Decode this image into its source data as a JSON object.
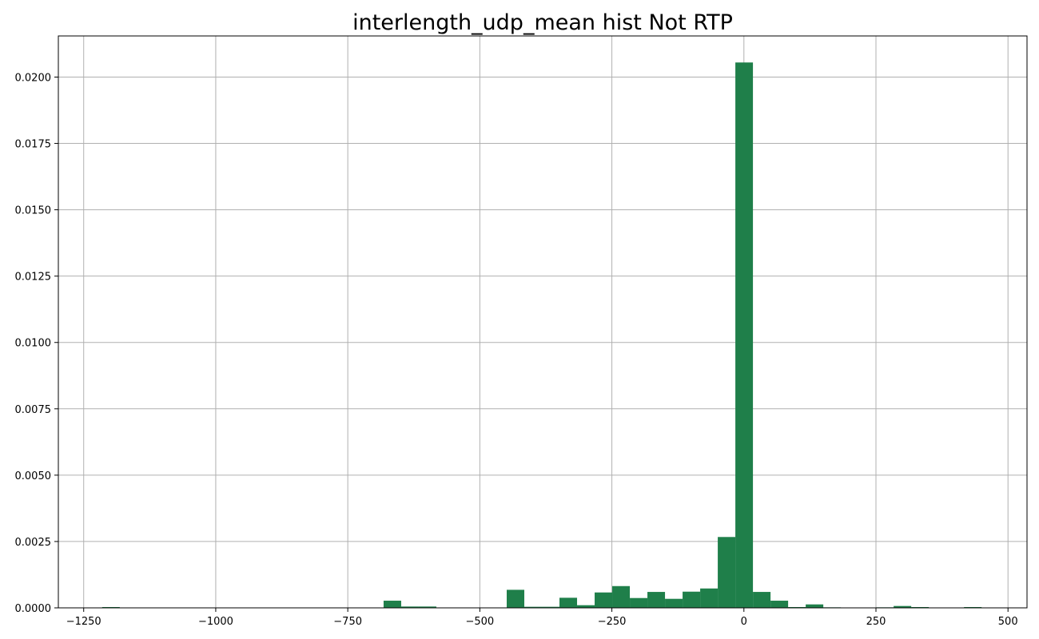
{
  "chart_data": {
    "type": "bar",
    "title": "interlength_udp_mean hist Not RTP",
    "xlabel": "",
    "ylabel": "",
    "xlim": [
      -1298,
      536
    ],
    "ylim": [
      0,
      0.02155
    ],
    "grid": true,
    "bar_color": "#1f7f4a",
    "x_ticks": [
      -1250,
      -1000,
      -750,
      -500,
      -250,
      0,
      250,
      500
    ],
    "x_tick_labels": [
      "−1250",
      "−1000",
      "−750",
      "−500",
      "−250",
      "0",
      "250",
      "500"
    ],
    "y_ticks": [
      0.0,
      0.0025,
      0.005,
      0.0075,
      0.01,
      0.0125,
      0.015,
      0.0175,
      0.02
    ],
    "y_tick_labels": [
      "0.0000",
      "0.0025",
      "0.0050",
      "0.0075",
      "0.0100",
      "0.0125",
      "0.0150",
      "0.0175",
      "0.0200"
    ],
    "bin_edges": [
      -1215,
      -1181.7,
      -1148.4,
      -1115.1,
      -1081.8,
      -1048.5,
      -1015.2,
      -981.9,
      -948.6,
      -915.3,
      -882,
      -848.7,
      -815.4,
      -782.1,
      -748.8,
      -715.5,
      -682.2,
      -648.9,
      -615.6,
      -582.3,
      -549,
      -515.7,
      -482.4,
      -449.1,
      -415.8,
      -382.5,
      -349.2,
      -315.9,
      -282.6,
      -249.3,
      -216,
      -182.7,
      -149.4,
      -116.1,
      -82.8,
      -49.5,
      -16.2,
      17.1,
      50.4,
      83.7,
      117,
      150.3,
      183.6,
      216.9,
      250.2,
      283.5,
      316.8,
      350.1,
      383.4,
      416.7,
      450
    ],
    "values": [
      3e-05,
      0,
      0,
      0,
      0,
      0,
      0,
      0,
      0,
      0,
      0,
      0,
      0,
      0,
      0,
      0,
      0.00027,
      5e-05,
      5e-05,
      0,
      0,
      0,
      0,
      0.00068,
      4e-05,
      4e-05,
      0.00038,
      0.0001,
      0.00058,
      0.00082,
      0.00037,
      0.0006,
      0.00034,
      0.00061,
      0.00073,
      0.00267,
      0.02055,
      0.0006,
      0.00027,
      3e-05,
      0.00013,
      2e-05,
      0,
      0,
      2e-05,
      7e-05,
      3e-05,
      0,
      0,
      3e-05
    ]
  }
}
